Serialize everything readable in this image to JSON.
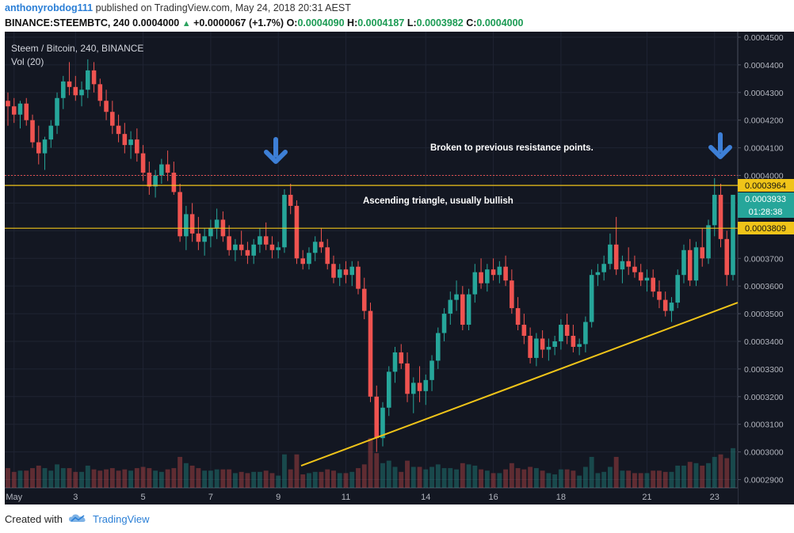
{
  "header": {
    "author": "anthonyrobdog111",
    "published_text": "published on TradingView.com, May 24, 2018 20:31 AEST",
    "symbol": "BINANCE:STEEMBTC, 240",
    "change_icon": "up-triangle-icon",
    "change": "+0.0000067 (+1.7%)",
    "open_label": "O:",
    "open": "0.0004090",
    "high_label": "H:",
    "high": "0.0004187",
    "low_label": "L:",
    "low": "0.0003982",
    "close_label": "C:",
    "close": "0.0004000",
    "ohlc_prefix": "0.0004000"
  },
  "legend": {
    "title": "Steem / Bitcoin, 240, BINANCE",
    "volume": "Vol (20)"
  },
  "annotations": {
    "text1": "Broken to previous resistance points.",
    "text2": "Ascending triangle, usually bullish",
    "arrow_icon": "down-arrow-icon"
  },
  "price_labels": {
    "upper": "0.0003964",
    "current": "0.0003933",
    "countdown": "01:28:38",
    "lower": "0.0003809"
  },
  "footer": {
    "created_with": "Created with",
    "brand": "TradingView"
  },
  "colors": {
    "background": "#131722",
    "up": "#26a69a",
    "down": "#ef5350",
    "level_line": "#f0c419",
    "trend_line": "#f0c419",
    "arrow": "#3d7fd6",
    "dotted_line": "#e05050"
  },
  "chart_data": {
    "type": "candlestick",
    "y_ticks": [
      "0.0002900",
      "0.0003000",
      "0.0003100",
      "0.0003200",
      "0.0003300",
      "0.0003400",
      "0.0003500",
      "0.0003600",
      "0.0003700",
      "0.0003800",
      "0.0003900",
      "0.0004000",
      "0.0004100",
      "0.0004200",
      "0.0004300",
      "0.0004400",
      "0.0004500"
    ],
    "y_range": [
      0.000287,
      0.000452
    ],
    "x_ticks": [
      "May",
      "3",
      "5",
      "7",
      "9",
      "11",
      "14",
      "16",
      "18",
      "21",
      "23"
    ],
    "horizontal_levels": [
      0.0003964,
      0.0003809,
      0.0004
    ],
    "trend_line": {
      "from": 0.000295,
      "to": 0.000354
    },
    "candles_ohlc": [
      [
        0.000427,
        0.00043,
        0.000418,
        0.000425
      ],
      [
        0.000425,
        0.000428,
        0.000419,
        0.000422
      ],
      [
        0.000422,
        0.000427,
        0.000417,
        0.000426
      ],
      [
        0.000426,
        0.000428,
        0.000418,
        0.00042
      ],
      [
        0.00042,
        0.000422,
        0.00041,
        0.000412
      ],
      [
        0.000412,
        0.000418,
        0.000404,
        0.000408
      ],
      [
        0.000408,
        0.000414,
        0.000402,
        0.000413
      ],
      [
        0.000413,
        0.00042,
        0.00041,
        0.000418
      ],
      [
        0.000418,
        0.00043,
        0.000415,
        0.000428
      ],
      [
        0.000428,
        0.000436,
        0.000424,
        0.000434
      ],
      [
        0.000434,
        0.000441,
        0.000429,
        0.000432
      ],
      [
        0.000432,
        0.000436,
        0.000427,
        0.000429
      ],
      [
        0.000429,
        0.000434,
        0.000425,
        0.000431
      ],
      [
        0.000431,
        0.000442,
        0.000428,
        0.000438
      ],
      [
        0.000438,
        0.000441,
        0.00043,
        0.000433
      ],
      [
        0.000433,
        0.000435,
        0.000425,
        0.000427
      ],
      [
        0.000427,
        0.000431,
        0.00042,
        0.000423
      ],
      [
        0.000423,
        0.000427,
        0.000415,
        0.000418
      ],
      [
        0.000418,
        0.000422,
        0.000412,
        0.000415
      ],
      [
        0.000415,
        0.000419,
        0.000408,
        0.000411
      ],
      [
        0.000411,
        0.000416,
        0.000406,
        0.000413
      ],
      [
        0.000413,
        0.000417,
        0.000405,
        0.000408
      ],
      [
        0.000408,
        0.000411,
        0.000398,
        0.000401
      ],
      [
        0.000401,
        0.000405,
        0.000393,
        0.000396
      ],
      [
        0.000396,
        0.000402,
        0.000392,
        0.0004
      ],
      [
        0.0004,
        0.000406,
        0.000397,
        0.000404
      ],
      [
        0.000404,
        0.000409,
        0.000398,
        0.000401
      ],
      [
        0.000401,
        0.000405,
        0.000393,
        0.000394
      ],
      [
        0.000394,
        0.000397,
        0.000376,
        0.000378
      ],
      [
        0.000378,
        0.000389,
        0.000373,
        0.000386
      ],
      [
        0.000386,
        0.00039,
        0.000376,
        0.000379
      ],
      [
        0.000379,
        0.000385,
        0.000373,
        0.000376
      ],
      [
        0.000376,
        0.000381,
        0.000371,
        0.000378
      ],
      [
        0.000378,
        0.000384,
        0.000374,
        0.000381
      ],
      [
        0.000381,
        0.000388,
        0.000377,
        0.000384
      ],
      [
        0.000384,
        0.000387,
        0.000376,
        0.000378
      ],
      [
        0.000378,
        0.000382,
        0.000371,
        0.000373
      ],
      [
        0.000373,
        0.000377,
        0.000369,
        0.000375
      ],
      [
        0.000375,
        0.00038,
        0.000371,
        0.000373
      ],
      [
        0.000373,
        0.000376,
        0.000368,
        0.000371
      ],
      [
        0.000371,
        0.000377,
        0.000368,
        0.000375
      ],
      [
        0.000375,
        0.000381,
        0.000372,
        0.000378
      ],
      [
        0.000378,
        0.000383,
        0.000373,
        0.000375
      ],
      [
        0.000375,
        0.000378,
        0.00037,
        0.000373
      ],
      [
        0.000373,
        0.000376,
        0.00037,
        0.000374
      ],
      [
        0.000374,
        0.000395,
        0.000372,
        0.000393
      ],
      [
        0.000393,
        0.000397,
        0.000386,
        0.000389
      ],
      [
        0.000389,
        0.000391,
        0.000368,
        0.00037
      ],
      [
        0.00037,
        0.000373,
        0.000366,
        0.000368
      ],
      [
        0.000368,
        0.000374,
        0.000366,
        0.000372
      ],
      [
        0.000372,
        0.000378,
        0.000369,
        0.000376
      ],
      [
        0.000376,
        0.000381,
        0.000372,
        0.000374
      ],
      [
        0.000374,
        0.000377,
        0.000366,
        0.000368
      ],
      [
        0.000368,
        0.000371,
        0.000361,
        0.000363
      ],
      [
        0.000363,
        0.000368,
        0.00036,
        0.000366
      ],
      [
        0.000366,
        0.000369,
        0.000361,
        0.000364
      ],
      [
        0.000364,
        0.000369,
        0.00036,
        0.000367
      ],
      [
        0.000367,
        0.000369,
        0.000357,
        0.000359
      ],
      [
        0.000359,
        0.000363,
        0.000348,
        0.000351
      ],
      [
        0.000351,
        0.000354,
        0.000318,
        0.00032
      ],
      [
        0.00032,
        0.000324,
        0.0003,
        0.000305
      ],
      [
        0.000305,
        0.000318,
        0.000302,
        0.000316
      ],
      [
        0.000316,
        0.000331,
        0.000313,
        0.000329
      ],
      [
        0.000329,
        0.000338,
        0.000325,
        0.000336
      ],
      [
        0.000336,
        0.000339,
        0.00033,
        0.000332
      ],
      [
        0.000332,
        0.000336,
        0.000318,
        0.000321
      ],
      [
        0.000321,
        0.000327,
        0.000314,
        0.000325
      ],
      [
        0.000325,
        0.000331,
        0.000318,
        0.000322
      ],
      [
        0.000322,
        0.000328,
        0.000317,
        0.000326
      ],
      [
        0.000326,
        0.000335,
        0.000322,
        0.000333
      ],
      [
        0.000333,
        0.000345,
        0.00033,
        0.000343
      ],
      [
        0.000343,
        0.000352,
        0.00034,
        0.00035
      ],
      [
        0.00035,
        0.000358,
        0.000346,
        0.000355
      ],
      [
        0.000355,
        0.000362,
        0.000351,
        0.000357
      ],
      [
        0.000357,
        0.00036,
        0.000344,
        0.000346
      ],
      [
        0.000346,
        0.000359,
        0.000344,
        0.000357
      ],
      [
        0.000357,
        0.000368,
        0.000354,
        0.000365
      ],
      [
        0.000365,
        0.00037,
        0.000359,
        0.000361
      ],
      [
        0.000361,
        0.000368,
        0.000358,
        0.000366
      ],
      [
        0.000366,
        0.00037,
        0.000362,
        0.000364
      ],
      [
        0.000364,
        0.000369,
        0.000361,
        0.000367
      ],
      [
        0.000367,
        0.000371,
        0.00036,
        0.000362
      ],
      [
        0.000362,
        0.000366,
        0.00035,
        0.000352
      ],
      [
        0.000352,
        0.000356,
        0.000344,
        0.000346
      ],
      [
        0.000346,
        0.00035,
        0.000339,
        0.000342
      ],
      [
        0.000342,
        0.000345,
        0.000332,
        0.000334
      ],
      [
        0.000334,
        0.000343,
        0.000331,
        0.000341
      ],
      [
        0.000341,
        0.000344,
        0.000334,
        0.000337
      ],
      [
        0.000337,
        0.000341,
        0.000333,
        0.000338
      ],
      [
        0.000338,
        0.000342,
        0.000335,
        0.00034
      ],
      [
        0.00034,
        0.000348,
        0.000337,
        0.000346
      ],
      [
        0.000346,
        0.00035,
        0.000339,
        0.000342
      ],
      [
        0.000342,
        0.000346,
        0.000336,
        0.000338
      ],
      [
        0.000338,
        0.000341,
        0.000335,
        0.000339
      ],
      [
        0.000339,
        0.000349,
        0.000336,
        0.000347
      ],
      [
        0.000347,
        0.000366,
        0.000345,
        0.000364
      ],
      [
        0.000364,
        0.000368,
        0.00036,
        0.000365
      ],
      [
        0.000365,
        0.000371,
        0.000362,
        0.000368
      ],
      [
        0.000368,
        0.000379,
        0.000366,
        0.000375
      ],
      [
        0.000375,
        0.000385,
        0.000364,
        0.000366
      ],
      [
        0.000366,
        0.000371,
        0.000361,
        0.000369
      ],
      [
        0.000369,
        0.000374,
        0.000364,
        0.000367
      ],
      [
        0.000367,
        0.000371,
        0.000363,
        0.000365
      ],
      [
        0.000365,
        0.000368,
        0.00036,
        0.000362
      ],
      [
        0.000362,
        0.000366,
        0.000358,
        0.000363
      ],
      [
        0.000363,
        0.000366,
        0.000356,
        0.000358
      ],
      [
        0.000358,
        0.000362,
        0.000352,
        0.000355
      ],
      [
        0.000355,
        0.000358,
        0.000349,
        0.000351
      ],
      [
        0.000351,
        0.000356,
        0.000347,
        0.000354
      ],
      [
        0.000354,
        0.000366,
        0.000352,
        0.000364
      ],
      [
        0.000364,
        0.000375,
        0.000361,
        0.000373
      ],
      [
        0.000373,
        0.000377,
        0.00036,
        0.000362
      ],
      [
        0.000362,
        0.000376,
        0.00036,
        0.000374
      ],
      [
        0.000374,
        0.000381,
        0.000367,
        0.00037
      ],
      [
        0.00037,
        0.000384,
        0.000368,
        0.000382
      ],
      [
        0.000382,
        0.000399,
        0.000378,
        0.000393
      ],
      [
        0.000393,
        0.000397,
        0.000374,
        0.000377
      ],
      [
        0.000377,
        0.00038,
        0.00036,
        0.000364
      ],
      [
        0.000364,
        0.00039,
        0.000362,
        0.000393
      ]
    ]
  }
}
